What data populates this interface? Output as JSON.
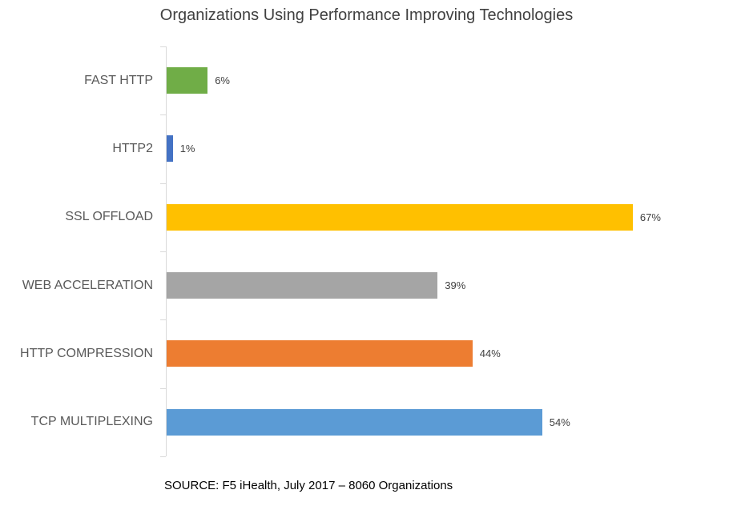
{
  "title": "Organizations Using Performance Improving Technologies",
  "source_note": "SOURCE: F5 iHealth, July 2017 – 8060 Organizations",
  "chart_data": {
    "type": "bar",
    "orientation": "horizontal",
    "title": "Organizations Using Performance Improving Technologies",
    "categories": [
      "FAST HTTP",
      "HTTP2",
      "SSL OFFLOAD",
      "WEB ACCELERATION",
      "HTTP COMPRESSION",
      "TCP MULTIPLEXING"
    ],
    "values": [
      6,
      1,
      67,
      39,
      44,
      54
    ],
    "data_labels": [
      "6%",
      "1%",
      "67%",
      "39%",
      "44%",
      "54%"
    ],
    "bar_colors": [
      "#70AD47",
      "#4472C4",
      "#FFC000",
      "#A5A5A5",
      "#ED7D31",
      "#5B9BD5"
    ],
    "value_unit": "%",
    "xlabel": "",
    "ylabel": "",
    "xlim": [
      0,
      80
    ],
    "grid": false,
    "legend": false,
    "annotations": [
      "SOURCE: F5 iHealth, July 2017 – 8060 Organizations"
    ]
  },
  "style_colors": {
    "background": "#FFFFFF",
    "title_text": "#404040",
    "category_label_text": "#595959",
    "data_label_text": "#404040",
    "source_text": "#000000",
    "axis_line": "#D9D9D9"
  }
}
